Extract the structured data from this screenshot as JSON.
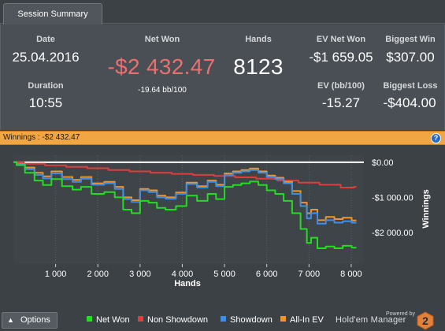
{
  "tab": {
    "label": "Session Summary"
  },
  "summary": {
    "date": {
      "label": "Date",
      "value": "25.04.2016"
    },
    "duration": {
      "label": "Duration",
      "value": "10:55"
    },
    "net_won": {
      "label": "Net Won",
      "value": "-$2 432.47",
      "sub": "-19.64 bb/100"
    },
    "hands": {
      "label": "Hands",
      "value": "8123"
    },
    "ev_net_won": {
      "label": "EV Net Won",
      "value": "-$1 659.05"
    },
    "ev_bb100": {
      "label": "EV (bb/100)",
      "value": "-15.27"
    },
    "biggest_win": {
      "label": "Biggest Win",
      "value": "$307.00"
    },
    "biggest_loss": {
      "label": "Biggest Loss",
      "value": "-$404.00"
    }
  },
  "winnings_bar": {
    "text": "Winnings : -$2 432.47",
    "help_glyph": "?"
  },
  "bottom": {
    "options_label": "Options",
    "powered_by": "Powered by",
    "brand": "Hold'em Manager",
    "brand_badge": "2"
  },
  "colors": {
    "net_won": "#22dd22",
    "non_showdown": "#e03c3c",
    "showdown": "#3f8ee6",
    "all_in_ev": "#f0952b",
    "accent_orange": "#f0a642"
  },
  "chart_data": {
    "type": "line",
    "xlabel": "Hands",
    "ylabel": "Winnings",
    "xlim": [
      0,
      8300
    ],
    "ylim": [
      -2900,
      200
    ],
    "x_ticks": [
      1000,
      2000,
      3000,
      4000,
      5000,
      6000,
      7000,
      8000
    ],
    "x_tick_labels": [
      "1 000",
      "2 000",
      "3 000",
      "4 000",
      "5 000",
      "6 000",
      "7 000",
      "8 000"
    ],
    "y_ticks": [
      0,
      -1000,
      -2000
    ],
    "y_tick_labels": [
      "$0.00",
      "-$1 000.00",
      "-$2 000.00"
    ],
    "legend_position": "bottom",
    "series": [
      {
        "name": "Net Won",
        "color": "#22dd22",
        "x": [
          0,
          150,
          400,
          600,
          800,
          1000,
          1300,
          1500,
          1700,
          2000,
          2300,
          2500,
          2700,
          2900,
          3100,
          3300,
          3500,
          3700,
          4000,
          4200,
          4500,
          4700,
          4900,
          5100,
          5300,
          5500,
          5700,
          5900,
          6100,
          6300,
          6500,
          6700,
          6900,
          7000,
          7100,
          7300,
          7500,
          7700,
          7900,
          8123
        ],
        "values": [
          0,
          -80,
          -300,
          -520,
          -650,
          -480,
          -680,
          -780,
          -700,
          -900,
          -850,
          -1000,
          -1350,
          -1450,
          -1100,
          -1150,
          -1300,
          -1350,
          -1250,
          -950,
          -1100,
          -900,
          -1050,
          -700,
          -650,
          -600,
          -550,
          -650,
          -800,
          -900,
          -1100,
          -1450,
          -1900,
          -2300,
          -2150,
          -2450,
          -2400,
          -2450,
          -2380,
          -2432
        ]
      },
      {
        "name": "Non Showdown",
        "color": "#e03c3c",
        "x": [
          0,
          500,
          1000,
          1500,
          2000,
          2500,
          3000,
          3500,
          4000,
          4500,
          5000,
          5500,
          6000,
          6500,
          7000,
          7500,
          8000,
          8123
        ],
        "values": [
          0,
          -40,
          -90,
          -130,
          -170,
          -220,
          -260,
          -300,
          -330,
          -360,
          -390,
          -430,
          -470,
          -520,
          -580,
          -640,
          -720,
          -700
        ]
      },
      {
        "name": "Showdown",
        "color": "#3f8ee6",
        "x": [
          0,
          150,
          400,
          600,
          800,
          1000,
          1300,
          1500,
          1700,
          2000,
          2300,
          2500,
          2700,
          2900,
          3100,
          3300,
          3500,
          3700,
          4000,
          4200,
          4500,
          4700,
          4900,
          5100,
          5300,
          5500,
          5700,
          5900,
          6100,
          6300,
          6500,
          6700,
          6900,
          7000,
          7100,
          7300,
          7500,
          7700,
          7900,
          8123
        ],
        "values": [
          0,
          -60,
          -200,
          -360,
          -460,
          -320,
          -480,
          -560,
          -470,
          -640,
          -600,
          -760,
          -1050,
          -1130,
          -800,
          -850,
          -1000,
          -1040,
          -900,
          -620,
          -720,
          -560,
          -680,
          -360,
          -300,
          -260,
          -220,
          -300,
          -420,
          -480,
          -600,
          -900,
          -1250,
          -1600,
          -1450,
          -1750,
          -1650,
          -1720,
          -1680,
          -1720
        ]
      },
      {
        "name": "All-In EV",
        "color": "#f0952b",
        "x": [
          0,
          150,
          400,
          600,
          800,
          1000,
          1300,
          1500,
          1700,
          2000,
          2300,
          2500,
          2700,
          2900,
          3100,
          3300,
          3500,
          3700,
          4000,
          4200,
          4500,
          4700,
          4900,
          5100,
          5300,
          5500,
          5700,
          5900,
          6100,
          6300,
          6500,
          6700,
          6900,
          7000,
          7100,
          7300,
          7500,
          7700,
          7900,
          8123
        ],
        "values": [
          0,
          -50,
          -150,
          -300,
          -400,
          -260,
          -420,
          -500,
          -420,
          -600,
          -560,
          -700,
          -1000,
          -1080,
          -760,
          -800,
          -950,
          -1000,
          -860,
          -580,
          -680,
          -520,
          -640,
          -320,
          -260,
          -220,
          -180,
          -260,
          -380,
          -440,
          -560,
          -820,
          -1150,
          -1450,
          -1350,
          -1650,
          -1560,
          -1620,
          -1580,
          -1659
        ]
      }
    ]
  }
}
